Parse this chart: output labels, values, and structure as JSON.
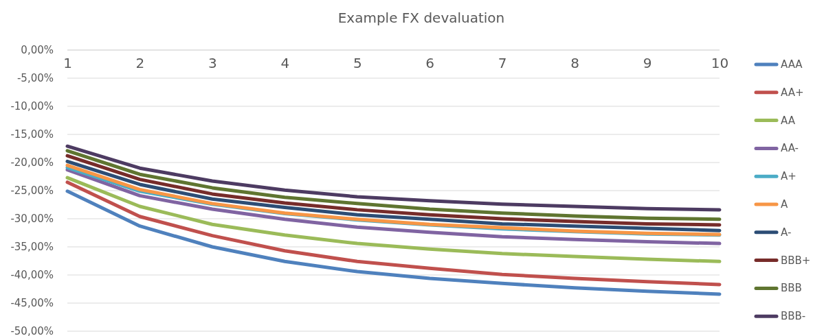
{
  "chart_data": {
    "type": "line",
    "title": "Example FX devaluation",
    "categories": [
      "1",
      "2",
      "3",
      "4",
      "5",
      "6",
      "7",
      "8",
      "9",
      "10"
    ],
    "ylim": [
      -50,
      0
    ],
    "yticks": [
      {
        "value": 0,
        "label": "0,00%"
      },
      {
        "value": -5,
        "label": "-5,00%"
      },
      {
        "value": -10,
        "label": "-10,00%"
      },
      {
        "value": -15,
        "label": "-15,00%"
      },
      {
        "value": -20,
        "label": "-20,00%"
      },
      {
        "value": -25,
        "label": "-25,00%"
      },
      {
        "value": -30,
        "label": "-30,00%"
      },
      {
        "value": -35,
        "label": "-35,00%"
      },
      {
        "value": -40,
        "label": "-40,00%"
      },
      {
        "value": -45,
        "label": "-45,00%"
      },
      {
        "value": -50,
        "label": "-50,00%"
      }
    ],
    "grid": "y",
    "legend": "right",
    "marker": "none",
    "line_style": "solid",
    "series": [
      {
        "name": "AAA",
        "color": "#4f81bd",
        "values": [
          -25.1,
          -31.3,
          -35.0,
          -37.6,
          -39.4,
          -40.6,
          -41.5,
          -42.3,
          -42.9,
          -43.4
        ]
      },
      {
        "name": "AA+",
        "color": "#c0504d",
        "values": [
          -23.5,
          -29.6,
          -33.0,
          -35.7,
          -37.6,
          -38.8,
          -39.9,
          -40.6,
          -41.2,
          -41.7
        ]
      },
      {
        "name": "AA",
        "color": "#9bbb59",
        "values": [
          -22.7,
          -27.8,
          -31.0,
          -32.9,
          -34.4,
          -35.4,
          -36.2,
          -36.7,
          -37.2,
          -37.6
        ]
      },
      {
        "name": "AA-",
        "color": "#8064a2",
        "values": [
          -21.3,
          -25.9,
          -28.3,
          -30.1,
          -31.5,
          -32.4,
          -33.2,
          -33.7,
          -34.1,
          -34.4
        ]
      },
      {
        "name": "A+",
        "color": "#4bacc6",
        "values": [
          -20.9,
          -25.1,
          -27.4,
          -29.1,
          -30.2,
          -31.1,
          -31.8,
          -32.3,
          -32.7,
          -32.9
        ]
      },
      {
        "name": "A",
        "color": "#f79646",
        "values": [
          -20.5,
          -24.8,
          -27.3,
          -29.0,
          -30.1,
          -31.0,
          -31.6,
          -32.2,
          -32.6,
          -32.8
        ]
      },
      {
        "name": "A-",
        "color": "#2c4d75",
        "values": [
          -19.8,
          -23.9,
          -26.5,
          -28.0,
          -29.3,
          -30.1,
          -30.9,
          -31.3,
          -31.7,
          -32.1
        ]
      },
      {
        "name": "BBB+",
        "color": "#772c2a",
        "values": [
          -18.8,
          -23.0,
          -25.6,
          -27.2,
          -28.4,
          -29.3,
          -30.0,
          -30.5,
          -30.9,
          -31.1
        ]
      },
      {
        "name": "BBB",
        "color": "#5f7530",
        "values": [
          -17.9,
          -22.1,
          -24.5,
          -26.2,
          -27.3,
          -28.3,
          -29.0,
          -29.5,
          -29.9,
          -30.1
        ]
      },
      {
        "name": "BBB-",
        "color": "#4d3b62",
        "values": [
          -17.1,
          -21.0,
          -23.3,
          -24.9,
          -26.1,
          -26.8,
          -27.4,
          -27.8,
          -28.2,
          -28.4
        ]
      }
    ]
  }
}
